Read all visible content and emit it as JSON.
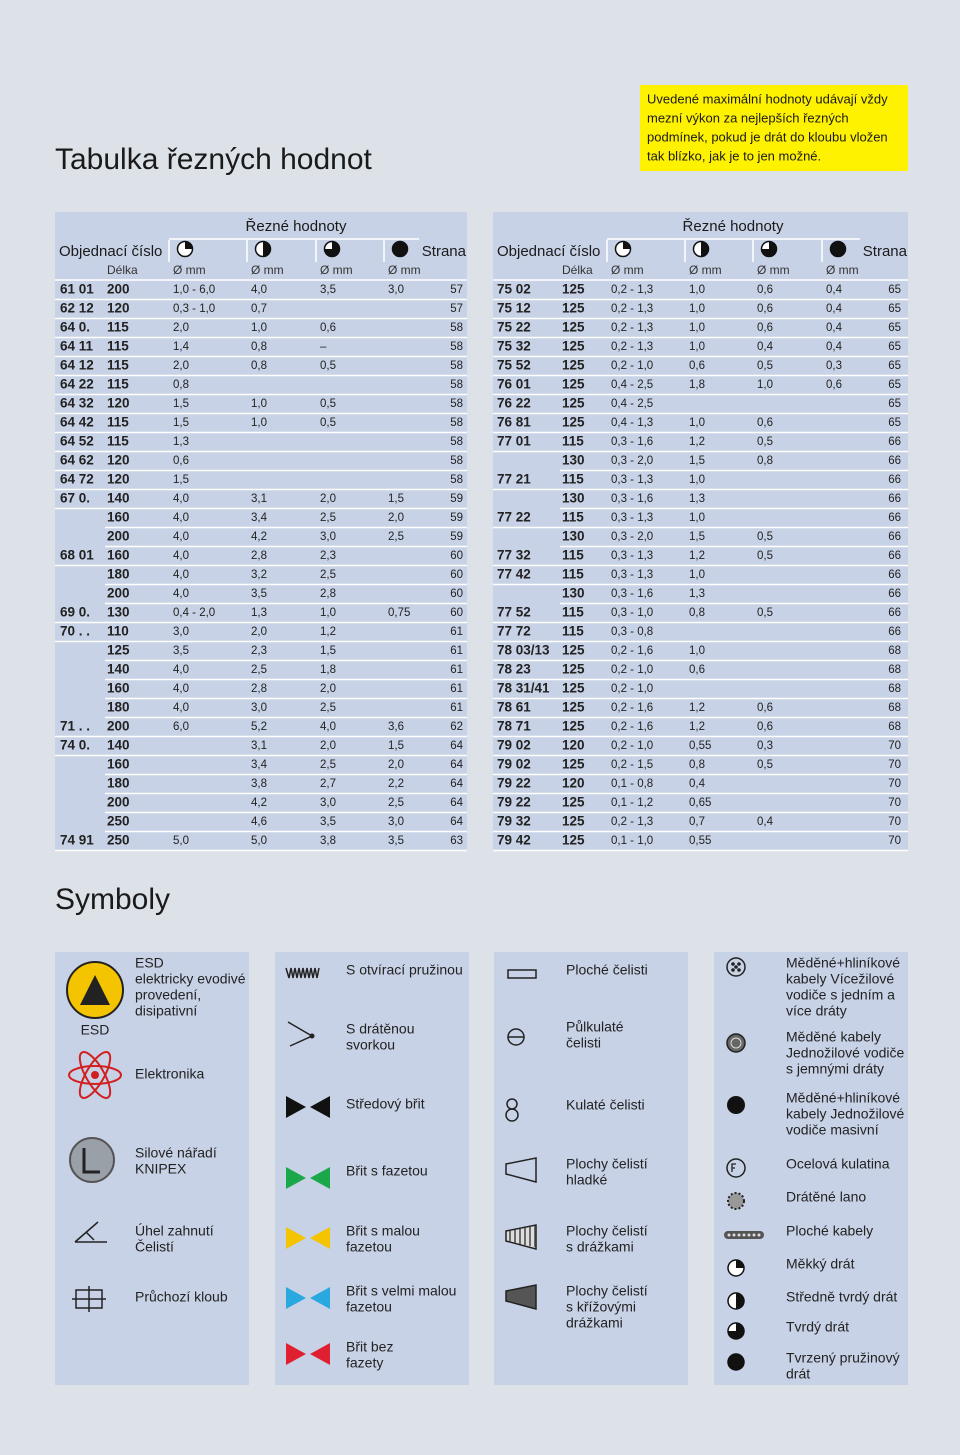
{
  "title": "Tabulka řezných hodnot",
  "note": [
    "Uvedené maximální hodnoty udávají vždy",
    "mezní výkon za nejlepších řezných",
    "podmínek, pokud je drát do kloubu vložen",
    "tak blízko, jak je to jen možné."
  ],
  "tables": [
    {
      "group_header": "Řezné hodnoty",
      "order_header": "Objednací číslo",
      "page_header": "Strana",
      "subheaders": [
        "Délka",
        "Ø mm",
        "Ø mm",
        "Ø mm",
        "Ø mm"
      ],
      "rows": [
        [
          "61 01",
          "200",
          "1,0 - 6,0",
          "4,0",
          "3,5",
          "3,0",
          "57"
        ],
        [
          "62 12",
          "120",
          "0,3 - 1,0",
          "0,7",
          null,
          null,
          "57"
        ],
        [
          "64 0.",
          "115",
          "2,0",
          "1,0",
          "0,6",
          null,
          "58"
        ],
        [
          "64 11",
          "115",
          "1,4",
          "0,8",
          "–",
          null,
          "58"
        ],
        [
          "64 12",
          "115",
          "2,0",
          "0,8",
          "0,5",
          null,
          "58"
        ],
        [
          "64 22",
          "115",
          "0,8",
          null,
          null,
          null,
          "58"
        ],
        [
          "64 32",
          "120",
          "1,5",
          "1,0",
          "0,5",
          null,
          "58"
        ],
        [
          "64 42",
          "115",
          "1,5",
          "1,0",
          "0,5",
          null,
          "58"
        ],
        [
          "64 52",
          "115",
          "1,3",
          null,
          null,
          null,
          "58"
        ],
        [
          "64 62",
          "120",
          "0,6",
          null,
          null,
          null,
          "58"
        ],
        [
          "64 72",
          "120",
          "1,5",
          null,
          null,
          null,
          "58"
        ],
        [
          "67 0.",
          "140",
          "4,0",
          "3,1",
          "2,0",
          "1,5",
          "59"
        ],
        [
          null,
          "160",
          "4,0",
          "3,4",
          "2,5",
          "2,0",
          "59"
        ],
        [
          null,
          "200",
          "4,0",
          "4,2",
          "3,0",
          "2,5",
          "59"
        ],
        [
          "68 01",
          "160",
          "4,0",
          "2,8",
          "2,3",
          null,
          "60"
        ],
        [
          null,
          "180",
          "4,0",
          "3,2",
          "2,5",
          null,
          "60"
        ],
        [
          null,
          "200",
          "4,0",
          "3,5",
          "2,8",
          null,
          "60"
        ],
        [
          "69 0.",
          "130",
          "0,4 - 2,0",
          "1,3",
          "1,0",
          "0,75",
          "60"
        ],
        [
          "70 . .",
          "110",
          "3,0",
          "2,0",
          "1,2",
          null,
          "61"
        ],
        [
          null,
          "125",
          "3,5",
          "2,3",
          "1,5",
          null,
          "61"
        ],
        [
          null,
          "140",
          "4,0",
          "2,5",
          "1,8",
          null,
          "61"
        ],
        [
          null,
          "160",
          "4,0",
          "2,8",
          "2,0",
          null,
          "61"
        ],
        [
          null,
          "180",
          "4,0",
          "3,0",
          "2,5",
          null,
          "61"
        ],
        [
          "71 . .",
          "200",
          "6,0",
          "5,2",
          "4,0",
          "3,6",
          "62"
        ],
        [
          "74 0.",
          "140",
          null,
          "3,1",
          "2,0",
          "1,5",
          "64"
        ],
        [
          null,
          "160",
          null,
          "3,4",
          "2,5",
          "2,0",
          "64"
        ],
        [
          null,
          "180",
          null,
          "3,8",
          "2,7",
          "2,2",
          "64"
        ],
        [
          null,
          "200",
          null,
          "4,2",
          "3,0",
          "2,5",
          "64"
        ],
        [
          null,
          "250",
          null,
          "4,6",
          "3,5",
          "3,0",
          "64"
        ],
        [
          "74 91",
          "250",
          "5,0",
          "5,0",
          "3,8",
          "3,5",
          "63"
        ]
      ]
    },
    {
      "group_header": "Řezné hodnoty",
      "order_header": "Objednací číslo",
      "page_header": "Strana",
      "subheaders": [
        "Délka",
        "Ø mm",
        "Ø mm",
        "Ø mm",
        "Ø mm"
      ],
      "rows": [
        [
          "75 02",
          "125",
          "0,2 - 1,3",
          "1,0",
          "0,6",
          "0,4",
          "65"
        ],
        [
          "75 12",
          "125",
          "0,2 - 1,3",
          "1,0",
          "0,6",
          "0,4",
          "65"
        ],
        [
          "75 22",
          "125",
          "0,2 - 1,3",
          "1,0",
          "0,6",
          "0,4",
          "65"
        ],
        [
          "75 32",
          "125",
          "0,2 - 1,3",
          "1,0",
          "0,4",
          "0,4",
          "65"
        ],
        [
          "75 52",
          "125",
          "0,2 - 1,0",
          "0,6",
          "0,5",
          "0,3",
          "65"
        ],
        [
          "76 01",
          "125",
          "0,4 - 2,5",
          "1,8",
          "1,0",
          "0,6",
          "65"
        ],
        [
          "76 22",
          "125",
          "0,4 - 2,5",
          null,
          null,
          null,
          "65"
        ],
        [
          "76 81",
          "125",
          "0,4 - 1,3",
          "1,0",
          "0,6",
          null,
          "65"
        ],
        [
          "77 01",
          "115",
          "0,3 - 1,6",
          "1,2",
          "0,5",
          null,
          "66"
        ],
        [
          null,
          "130",
          "0,3 - 2,0",
          "1,5",
          "0,8",
          null,
          "66"
        ],
        [
          "77 21",
          "115",
          "0,3 - 1,3",
          "1,0",
          null,
          null,
          "66"
        ],
        [
          null,
          "130",
          "0,3 - 1,6",
          "1,3",
          null,
          null,
          "66"
        ],
        [
          "77 22",
          "115",
          "0,3 - 1,3",
          "1,0",
          null,
          null,
          "66"
        ],
        [
          null,
          "130",
          "0,3 - 2,0",
          "1,5",
          "0,5",
          null,
          "66"
        ],
        [
          "77 32",
          "115",
          "0,3 - 1,3",
          "1,2",
          "0,5",
          null,
          "66"
        ],
        [
          "77 42",
          "115",
          "0,3 - 1,3",
          "1,0",
          null,
          null,
          "66"
        ],
        [
          null,
          "130",
          "0,3 - 1,6",
          "1,3",
          null,
          null,
          "66"
        ],
        [
          "77 52",
          "115",
          "0,3 - 1,0",
          "0,8",
          "0,5",
          null,
          "66"
        ],
        [
          "77 72",
          "115",
          "0,3 - 0,8",
          null,
          null,
          null,
          "66"
        ],
        [
          "78 03/13",
          "125",
          "0,2 - 1,6",
          "1,0",
          null,
          null,
          "68"
        ],
        [
          "78 23",
          "125",
          "0,2 - 1,0",
          "0,6",
          null,
          null,
          "68"
        ],
        [
          "78 31/41",
          "125",
          "0,2 - 1,0",
          null,
          null,
          null,
          "68"
        ],
        [
          "78 61",
          "125",
          "0,2 - 1,6",
          "1,2",
          "0,6",
          null,
          "68"
        ],
        [
          "78 71",
          "125",
          "0,2 - 1,6",
          "1,2",
          "0,6",
          null,
          "68"
        ],
        [
          "79 02",
          "120",
          "0,2 - 1,0",
          "0,55",
          "0,3",
          null,
          "70"
        ],
        [
          "79 02",
          "125",
          "0,2 - 1,5",
          "0,8",
          "0,5",
          null,
          "70"
        ],
        [
          "79 22",
          "120",
          "0,1 - 0,8",
          "0,4",
          null,
          null,
          "70"
        ],
        [
          "79 22",
          "125",
          "0,1 - 1,2",
          "0,65",
          null,
          null,
          "70"
        ],
        [
          "79 32",
          "125",
          "0,2 - 1,3",
          "0,7",
          "0,4",
          null,
          "70"
        ],
        [
          "79 42",
          "125",
          "0,1 - 1,0",
          "0,55",
          null,
          null,
          "70"
        ]
      ]
    }
  ],
  "symbols_title": "Symboly",
  "esd_icon_label": "ESD",
  "symbols": [
    [
      [
        "ESD",
        "elektricky evodivé",
        "provedení,",
        "disipativní"
      ],
      [
        "Elektronika"
      ],
      [
        "Silové nářadí",
        "KNIPEX"
      ],
      [
        "Úhel zahnutí",
        "Čelistí"
      ],
      [
        "Průchozí kloub"
      ]
    ],
    [
      [
        "S otvírací pružinou"
      ],
      [
        "S drátěnou",
        "svorkou"
      ],
      [
        "Středový břit"
      ],
      [
        "Břit s fazetou"
      ],
      [
        "Břit s malou",
        "fazetou"
      ],
      [
        "Břit s velmi malou",
        "fazetou"
      ],
      [
        "Břit bez",
        "fazety"
      ]
    ],
    [
      [
        "Ploché čelisti"
      ],
      [
        "Půlkulaté",
        "čelisti"
      ],
      [
        "Kulaté čelisti"
      ],
      [
        "Plochy čelistí",
        "hladké"
      ],
      [
        "Plochy čelistí",
        "s drážkami"
      ],
      [
        "Plochy čelistí",
        "s křížovými",
        "drážkami"
      ]
    ],
    [
      [
        "Měděné+hliníkové",
        "kabely Vícežilové",
        "vodiče s jedním a",
        "více dráty"
      ],
      [
        "Měděné kabely",
        "Jednožilové vodiče",
        "s jemnými dráty"
      ],
      [
        "Měděné+hliníkové",
        "kabely Jednožilové",
        "vodiče masivní"
      ],
      [
        "Ocelová kulatina"
      ],
      [
        "Drátěné lano"
      ],
      [
        "Ploché kabely"
      ],
      [
        "Měkký drát"
      ],
      [
        "Středně tvrdý drát"
      ],
      [
        "Tvrdý drát"
      ],
      [
        "Tvrzený pružinový",
        "drát"
      ]
    ]
  ]
}
